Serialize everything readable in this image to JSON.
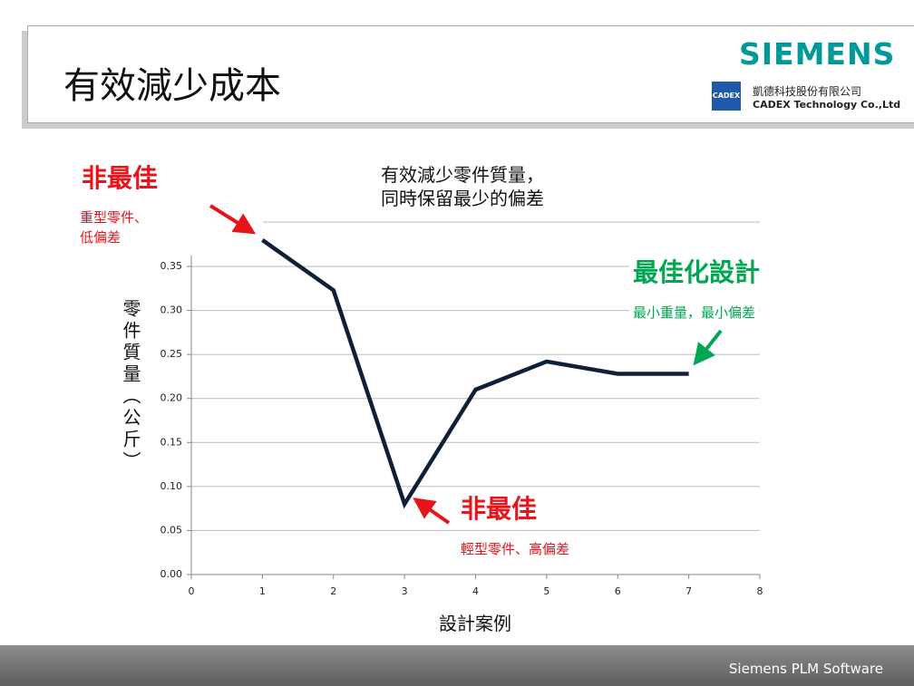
{
  "header": {
    "title": "有效減少成本",
    "brand": "SIEMENS",
    "logo": "CADEX",
    "company_zh": "凱德科技股份有限公司",
    "company_en": "CADEX Technology Co.,Ltd"
  },
  "footer": {
    "text": "Siemens PLM Software"
  },
  "chart_data": {
    "type": "line",
    "title": "有效減少零件質量，\n同時保留最少的偏差",
    "x_label": "設計案例",
    "y_label": "零件質量（公斤）",
    "x": [
      1,
      2,
      3,
      4,
      5,
      6,
      7
    ],
    "series": [
      {
        "name": null,
        "color": "#0f1f3a",
        "values": [
          0.38,
          0.323,
          0.08,
          0.21,
          0.242,
          0.228,
          0.228
        ]
      }
    ],
    "xlim": [
      0,
      8
    ],
    "xticks": [
      0,
      1,
      2,
      3,
      4,
      5,
      6,
      7,
      8
    ],
    "ylim": [
      0,
      0.36
    ],
    "yticks": [
      {
        "value": 0,
        "label": "0.00"
      },
      0.05,
      {
        "value": 0.1,
        "label": "0.10"
      },
      0.15,
      {
        "value": 0.2,
        "label": "0.20"
      },
      0.25,
      {
        "value": 0.3,
        "label": "0.30"
      },
      0.35
    ],
    "grid": true,
    "annotations": [
      {
        "title": "非最佳",
        "text": "重型零件、\n低偏差",
        "color": "#e8141b"
      },
      {
        "title": "最佳化設計",
        "text": "最小重量，最小偏差",
        "color": "#00a651"
      },
      {
        "title": "非最佳",
        "text": "輕型零件、高偏差",
        "color": "#e8141b"
      }
    ]
  }
}
